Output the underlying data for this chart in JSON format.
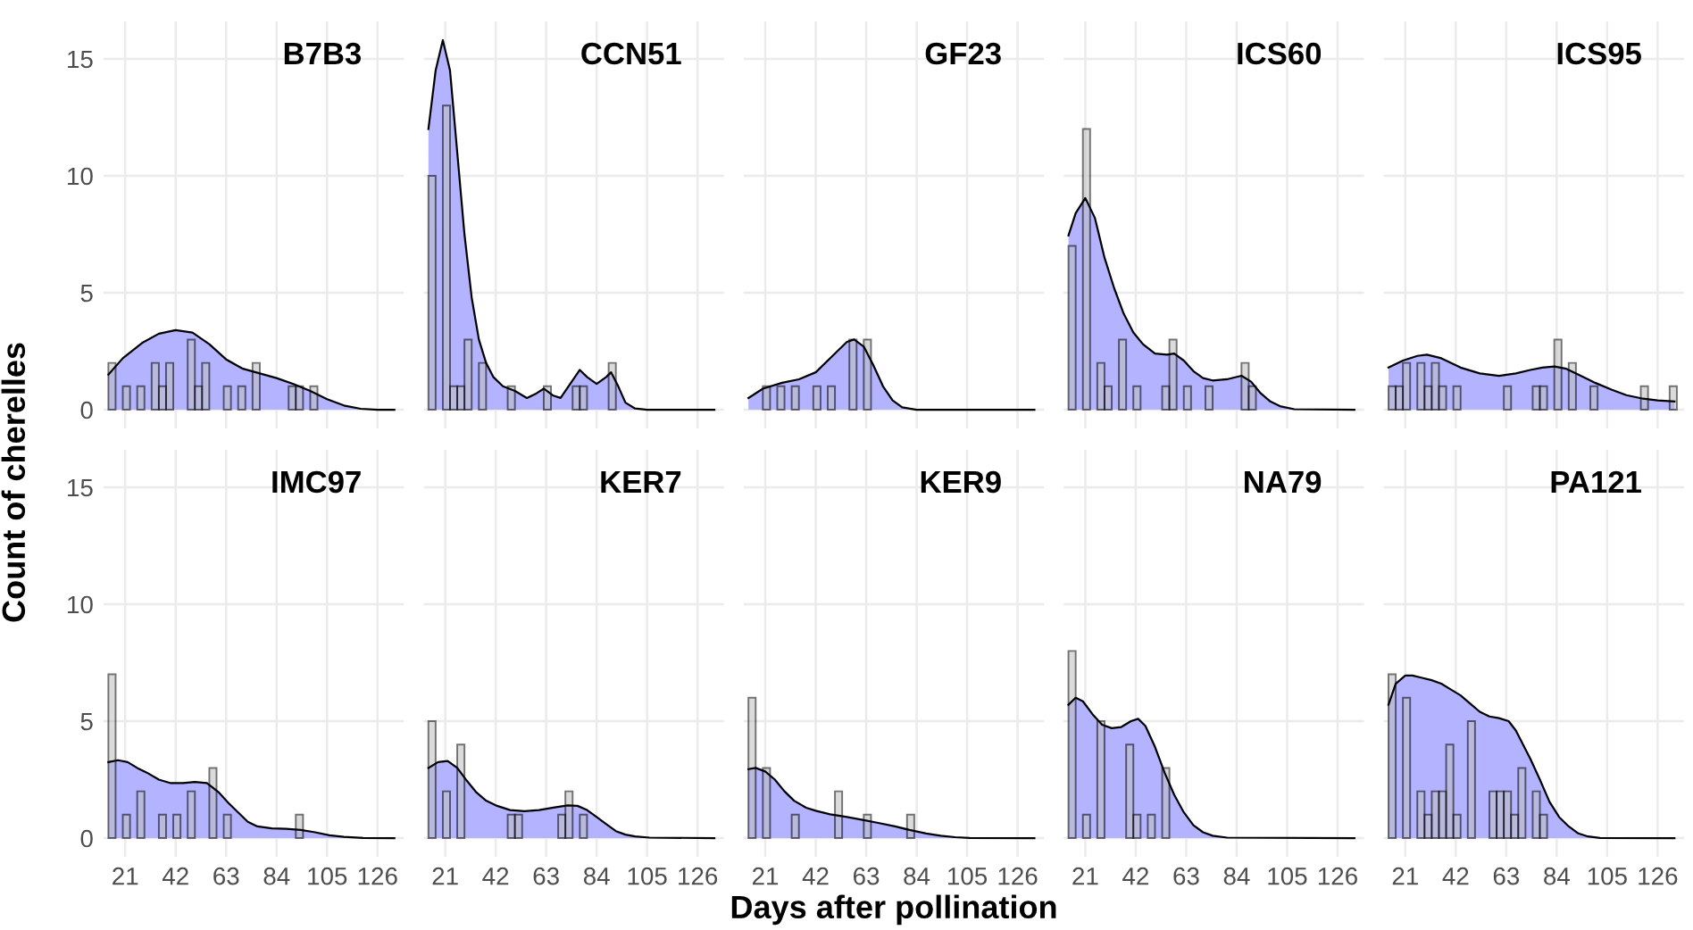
{
  "chart_data": [
    {
      "type": "histogram",
      "title": "B7B3",
      "xlim": [
        12,
        137
      ],
      "ylim": [
        -0.8,
        16.6
      ],
      "xticks": [
        21,
        42,
        63,
        84,
        105,
        126
      ],
      "yticks": [
        0,
        5,
        10,
        15
      ],
      "grid": true,
      "tick_labels": "y",
      "series": [
        {
          "type": "histogram",
          "color": "#bebebe",
          "bins": [
            14,
            17,
            20,
            23,
            26,
            29,
            32,
            35,
            38,
            41,
            44,
            47,
            50,
            53,
            56,
            59,
            62,
            65,
            68,
            71,
            74,
            77,
            80,
            83,
            86,
            89,
            92,
            95,
            98,
            101
          ],
          "values": [
            2,
            0,
            1,
            0,
            1,
            0,
            2,
            1,
            2,
            0,
            0,
            3,
            1,
            2,
            0,
            0,
            1,
            0,
            1,
            0,
            2,
            0,
            0,
            0,
            0,
            1,
            1,
            0,
            1
          ]
        },
        {
          "type": "area",
          "color": "#b3b3ff",
          "x": [
            14,
            20,
            28,
            35,
            42,
            49,
            56,
            63,
            70,
            77,
            84,
            91,
            98,
            105,
            112,
            119,
            126,
            133
          ],
          "values": [
            1.5,
            2.2,
            2.85,
            3.25,
            3.4,
            3.3,
            2.8,
            2.15,
            1.75,
            1.55,
            1.35,
            1.1,
            0.8,
            0.45,
            0.18,
            0.04,
            0,
            0
          ]
        }
      ]
    },
    {
      "type": "histogram",
      "title": "CCN51",
      "xlim": [
        12,
        137
      ],
      "ylim": [
        -0.8,
        16.6
      ],
      "xticks": [
        21,
        42,
        63,
        84,
        105,
        126
      ],
      "yticks": [
        0,
        5,
        10,
        15
      ],
      "grid": true,
      "tick_labels": false,
      "series": [
        {
          "type": "histogram",
          "color": "#bebebe",
          "bins": [
            14,
            17,
            20,
            23,
            26,
            29,
            32,
            35,
            38,
            41,
            44,
            47,
            50,
            53,
            56,
            59,
            62,
            65,
            68,
            71,
            74,
            77,
            80,
            83,
            86,
            89,
            92
          ],
          "values": [
            10,
            0,
            13,
            1,
            1,
            3,
            0,
            2,
            0,
            0,
            0,
            1,
            0,
            0,
            0,
            0,
            1,
            0,
            0,
            0,
            1,
            1,
            0,
            0,
            0,
            2
          ]
        },
        {
          "type": "area",
          "color": "#b3b3ff",
          "x": [
            14,
            17,
            20,
            23,
            26,
            29,
            32,
            35,
            38,
            41,
            45,
            50,
            55,
            59,
            62,
            66,
            69,
            73,
            77,
            80,
            84,
            88,
            90,
            93,
            96,
            100,
            105,
            133
          ],
          "values": [
            12,
            14.5,
            15.8,
            14.5,
            11,
            7.5,
            4.8,
            3,
            2,
            1.4,
            1.0,
            0.8,
            0.5,
            0.7,
            0.9,
            0.6,
            0.5,
            1.1,
            1.7,
            1.4,
            1.1,
            1.4,
            1.6,
            1.0,
            0.3,
            0.05,
            0,
            0
          ]
        }
      ]
    },
    {
      "type": "histogram",
      "title": "GF23",
      "xlim": [
        12,
        137
      ],
      "ylim": [
        -0.8,
        16.6
      ],
      "xticks": [
        21,
        42,
        63,
        84,
        105,
        126
      ],
      "yticks": [
        0,
        5,
        10,
        15
      ],
      "grid": true,
      "tick_labels": false,
      "series": [
        {
          "type": "histogram",
          "color": "#bebebe",
          "bins": [
            14,
            17,
            20,
            23,
            26,
            29,
            32,
            35,
            38,
            41,
            44,
            47,
            50,
            53,
            56,
            59,
            62,
            65
          ],
          "values": [
            0,
            0,
            1,
            0,
            1,
            0,
            1,
            0,
            0,
            1,
            0,
            1,
            0,
            0,
            3,
            0,
            3
          ]
        },
        {
          "type": "area",
          "color": "#b3b3ff",
          "x": [
            14,
            20,
            28,
            35,
            42,
            49,
            55,
            58,
            62,
            66,
            70,
            74,
            78,
            84,
            133
          ],
          "values": [
            0.5,
            0.9,
            1.15,
            1.3,
            1.6,
            2.3,
            2.9,
            3.0,
            2.7,
            1.9,
            1.0,
            0.4,
            0.1,
            0,
            0
          ]
        }
      ]
    },
    {
      "type": "histogram",
      "title": "ICS60",
      "xlim": [
        12,
        137
      ],
      "ylim": [
        -0.8,
        16.6
      ],
      "xticks": [
        21,
        42,
        63,
        84,
        105,
        126
      ],
      "yticks": [
        0,
        5,
        10,
        15
      ],
      "grid": true,
      "tick_labels": false,
      "series": [
        {
          "type": "histogram",
          "color": "#bebebe",
          "bins": [
            14,
            17,
            20,
            23,
            26,
            29,
            32,
            35,
            38,
            41,
            44,
            47,
            50,
            53,
            56,
            59,
            62,
            65,
            68,
            71,
            74,
            77,
            80,
            83,
            86,
            89,
            92
          ],
          "values": [
            7,
            0,
            12,
            0,
            2,
            1,
            0,
            3,
            0,
            1,
            0,
            0,
            0,
            1,
            3,
            0,
            1,
            0,
            0,
            1,
            0,
            0,
            0,
            0,
            2,
            1
          ]
        },
        {
          "type": "area",
          "color": "#b3b3ff",
          "x": [
            14,
            17,
            21,
            25,
            29,
            33,
            37,
            41,
            45,
            50,
            55,
            58,
            62,
            66,
            70,
            74,
            80,
            86,
            90,
            94,
            98,
            102,
            108,
            133
          ],
          "values": [
            7.45,
            8.4,
            9.05,
            8.2,
            6.5,
            5.2,
            4.1,
            3.3,
            2.8,
            2.4,
            2.35,
            2.4,
            2.1,
            1.65,
            1.35,
            1.25,
            1.3,
            1.45,
            1.2,
            0.7,
            0.35,
            0.15,
            0.02,
            0
          ]
        }
      ]
    },
    {
      "type": "histogram",
      "title": "ICS95",
      "xlim": [
        12,
        137
      ],
      "ylim": [
        -0.8,
        16.6
      ],
      "xticks": [
        21,
        42,
        63,
        84,
        105,
        126
      ],
      "yticks": [
        0,
        5,
        10,
        15
      ],
      "grid": true,
      "tick_labels": false,
      "series": [
        {
          "type": "histogram",
          "color": "#bebebe",
          "bins": [
            14,
            17,
            20,
            23,
            26,
            29,
            32,
            35,
            38,
            41,
            44,
            47,
            50,
            53,
            56,
            59,
            62,
            65,
            68,
            71,
            74,
            77,
            80,
            83,
            86,
            89,
            92,
            95,
            98,
            101,
            104,
            107,
            110,
            113,
            116,
            119,
            122,
            125,
            128,
            131,
            134
          ],
          "values": [
            1,
            1,
            2,
            0,
            2,
            1,
            2,
            1,
            0,
            1,
            0,
            0,
            0,
            0,
            0,
            0,
            1,
            0,
            0,
            0,
            1,
            1,
            0,
            3,
            0,
            2,
            0,
            0,
            1,
            0,
            0,
            0,
            0,
            0,
            0,
            1,
            0,
            0,
            0,
            1
          ]
        },
        {
          "type": "area",
          "color": "#b3b3ff",
          "x": [
            14,
            20,
            26,
            30,
            36,
            44,
            52,
            60,
            67,
            73,
            78,
            83,
            88,
            94,
            100,
            107,
            113,
            120,
            126,
            133
          ],
          "values": [
            1.8,
            2.1,
            2.3,
            2.35,
            2.2,
            1.8,
            1.55,
            1.45,
            1.55,
            1.7,
            1.8,
            1.85,
            1.75,
            1.45,
            1.15,
            0.85,
            0.62,
            0.47,
            0.4,
            0.35
          ]
        }
      ]
    },
    {
      "type": "histogram",
      "title": "IMC97",
      "ylabel": "Count of cherelles",
      "xlim": [
        12,
        137
      ],
      "ylim": [
        -0.8,
        16.6
      ],
      "xticks": [
        21,
        42,
        63,
        84,
        105,
        126
      ],
      "yticks": [
        0,
        5,
        10,
        15
      ],
      "grid": true,
      "series": [
        {
          "type": "histogram",
          "color": "#bebebe",
          "bins": [
            14,
            17,
            20,
            23,
            26,
            29,
            32,
            35,
            38,
            41,
            44,
            47,
            50,
            53,
            56,
            59,
            62,
            65,
            68,
            71,
            74,
            77,
            80,
            83,
            86,
            89,
            92,
            95
          ],
          "values": [
            7,
            0,
            1,
            0,
            2,
            0,
            0,
            1,
            0,
            1,
            0,
            2,
            0,
            0,
            3,
            0,
            1,
            0,
            0,
            0,
            0,
            0,
            0,
            0,
            0,
            0,
            1
          ]
        },
        {
          "type": "area",
          "color": "#b3b3ff",
          "x": [
            14,
            18,
            22,
            26,
            30,
            35,
            40,
            45,
            50,
            55,
            60,
            64,
            68,
            72,
            76,
            82,
            88,
            94,
            100,
            106,
            112,
            120,
            133
          ],
          "values": [
            3.25,
            3.33,
            3.25,
            3.0,
            2.8,
            2.5,
            2.35,
            2.35,
            2.4,
            2.35,
            1.95,
            1.5,
            1.1,
            0.7,
            0.5,
            0.42,
            0.4,
            0.35,
            0.25,
            0.12,
            0.05,
            0.01,
            0
          ]
        }
      ]
    },
    {
      "type": "histogram",
      "title": "KER7",
      "xlim": [
        12,
        137
      ],
      "ylim": [
        -0.8,
        16.6
      ],
      "xticks": [
        21,
        42,
        63,
        84,
        105,
        126
      ],
      "yticks": [
        0,
        5,
        10,
        15
      ],
      "grid": true,
      "tick_labels": "x",
      "series": [
        {
          "type": "histogram",
          "color": "#bebebe",
          "bins": [
            14,
            17,
            20,
            23,
            26,
            29,
            32,
            35,
            38,
            41,
            44,
            47,
            50,
            53,
            56,
            59,
            62,
            65,
            68,
            71,
            74,
            77,
            80
          ],
          "values": [
            5,
            0,
            2,
            0,
            4,
            0,
            0,
            0,
            0,
            0,
            0,
            1,
            1,
            0,
            0,
            0,
            0,
            0,
            1,
            2,
            0,
            1
          ]
        },
        {
          "type": "area",
          "color": "#b3b3ff",
          "x": [
            14,
            18,
            22,
            26,
            30,
            34,
            38,
            42,
            48,
            54,
            60,
            66,
            72,
            76,
            80,
            84,
            88,
            92,
            96,
            100,
            106,
            133
          ],
          "values": [
            3.0,
            3.25,
            3.3,
            3.0,
            2.45,
            1.95,
            1.6,
            1.4,
            1.2,
            1.15,
            1.2,
            1.3,
            1.4,
            1.38,
            1.2,
            0.9,
            0.6,
            0.3,
            0.15,
            0.07,
            0.02,
            0
          ]
        }
      ]
    },
    {
      "type": "histogram",
      "title": "KER9",
      "xlabel": "Days after pollination",
      "xlim": [
        12,
        137
      ],
      "ylim": [
        -0.8,
        16.6
      ],
      "xticks": [
        21,
        42,
        63,
        84,
        105,
        126
      ],
      "yticks": [
        0,
        5,
        10,
        15
      ],
      "grid": true,
      "tick_labels": "x",
      "series": [
        {
          "type": "histogram",
          "color": "#bebebe",
          "bins": [
            14,
            17,
            20,
            23,
            26,
            29,
            32,
            35,
            38,
            41,
            44,
            47,
            50,
            53,
            56,
            59,
            62,
            65,
            68,
            71,
            74,
            77,
            80,
            83
          ],
          "values": [
            6,
            0,
            3,
            0,
            0,
            0,
            1,
            0,
            0,
            0,
            0,
            0,
            2,
            0,
            0,
            0,
            1,
            0,
            0,
            0,
            0,
            0,
            1
          ]
        },
        {
          "type": "area",
          "color": "#b3b3ff",
          "x": [
            14,
            17,
            21,
            25,
            29,
            33,
            38,
            42,
            48,
            55,
            62,
            68,
            75,
            81,
            88,
            94,
            100,
            106,
            133
          ],
          "values": [
            2.95,
            3.0,
            2.85,
            2.5,
            2.0,
            1.6,
            1.3,
            1.17,
            1.02,
            0.9,
            0.77,
            0.65,
            0.5,
            0.35,
            0.2,
            0.1,
            0.04,
            0.01,
            0
          ]
        }
      ]
    },
    {
      "type": "histogram",
      "title": "NA79",
      "xlim": [
        12,
        137
      ],
      "ylim": [
        -0.8,
        16.6
      ],
      "xticks": [
        21,
        42,
        63,
        84,
        105,
        126
      ],
      "yticks": [
        0,
        5,
        10,
        15
      ],
      "grid": true,
      "tick_labels": "x",
      "series": [
        {
          "type": "histogram",
          "color": "#bebebe",
          "bins": [
            14,
            17,
            20,
            23,
            26,
            29,
            32,
            35,
            38,
            41,
            44,
            47,
            50,
            53,
            56
          ],
          "values": [
            8,
            0,
            1,
            0,
            5,
            0,
            0,
            0,
            4,
            1,
            0,
            1,
            0,
            3
          ]
        },
        {
          "type": "area",
          "color": "#b3b3ff",
          "x": [
            14,
            17,
            20,
            24,
            28,
            32,
            36,
            40,
            43,
            46,
            50,
            54,
            58,
            62,
            66,
            70,
            74,
            80,
            133
          ],
          "values": [
            5.7,
            6.0,
            5.85,
            5.3,
            4.85,
            4.7,
            4.75,
            5.0,
            5.1,
            4.8,
            3.9,
            2.8,
            1.85,
            1.1,
            0.55,
            0.25,
            0.1,
            0.02,
            0
          ]
        }
      ]
    },
    {
      "type": "histogram",
      "title": "PA121",
      "xlim": [
        12,
        137
      ],
      "ylim": [
        -0.8,
        16.6
      ],
      "xticks": [
        21,
        42,
        63,
        84,
        105,
        126
      ],
      "yticks": [
        0,
        5,
        10,
        15
      ],
      "grid": true,
      "tick_labels": "x",
      "series": [
        {
          "type": "histogram",
          "color": "#bebebe",
          "bins": [
            14,
            17,
            20,
            23,
            26,
            29,
            32,
            35,
            38,
            41,
            44,
            47,
            50,
            53,
            56,
            59,
            62,
            65,
            68,
            71,
            74,
            77,
            80
          ],
          "values": [
            7,
            0,
            6,
            0,
            2,
            1,
            2,
            2,
            4,
            1,
            0,
            5,
            0,
            0,
            2,
            2,
            2,
            1,
            3,
            0,
            2,
            1
          ]
        },
        {
          "type": "area",
          "color": "#b3b3ff",
          "x": [
            14,
            17,
            21,
            24,
            28,
            32,
            36,
            40,
            44,
            48,
            52,
            56,
            60,
            64,
            67,
            70,
            73,
            77,
            81,
            85,
            89,
            93,
            97,
            102,
            133
          ],
          "values": [
            5.7,
            6.6,
            6.95,
            6.95,
            6.85,
            6.75,
            6.6,
            6.35,
            6.1,
            5.75,
            5.4,
            5.2,
            5.13,
            5.0,
            4.6,
            4.0,
            3.4,
            2.5,
            1.55,
            0.9,
            0.5,
            0.2,
            0.07,
            0.01,
            0
          ]
        }
      ]
    }
  ]
}
